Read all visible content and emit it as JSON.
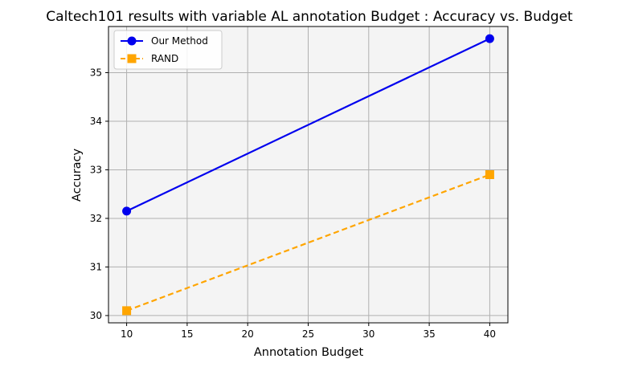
{
  "chart_data": {
    "type": "line",
    "title": "Caltech101 results with variable AL annotation Budget : Accuracy vs. Budget",
    "xlabel": "Annotation Budget",
    "ylabel": "Accuracy",
    "xlim": [
      8.5,
      41.5
    ],
    "ylim": [
      29.85,
      35.95
    ],
    "xticks": [
      10,
      15,
      20,
      25,
      30,
      35,
      40
    ],
    "yticks": [
      30,
      31,
      32,
      33,
      34,
      35
    ],
    "grid": true,
    "legend": "upper-left",
    "plot_background": "#f4f4f4",
    "series": [
      {
        "name": "Our Method",
        "color": "#0000ee",
        "marker": "circle",
        "linestyle": "solid",
        "x": [
          10,
          40
        ],
        "y": [
          32.15,
          35.7
        ]
      },
      {
        "name": "RAND",
        "color": "#ffa500",
        "marker": "square",
        "linestyle": "dashed",
        "x": [
          10,
          40
        ],
        "y": [
          30.1,
          32.9
        ]
      }
    ]
  }
}
